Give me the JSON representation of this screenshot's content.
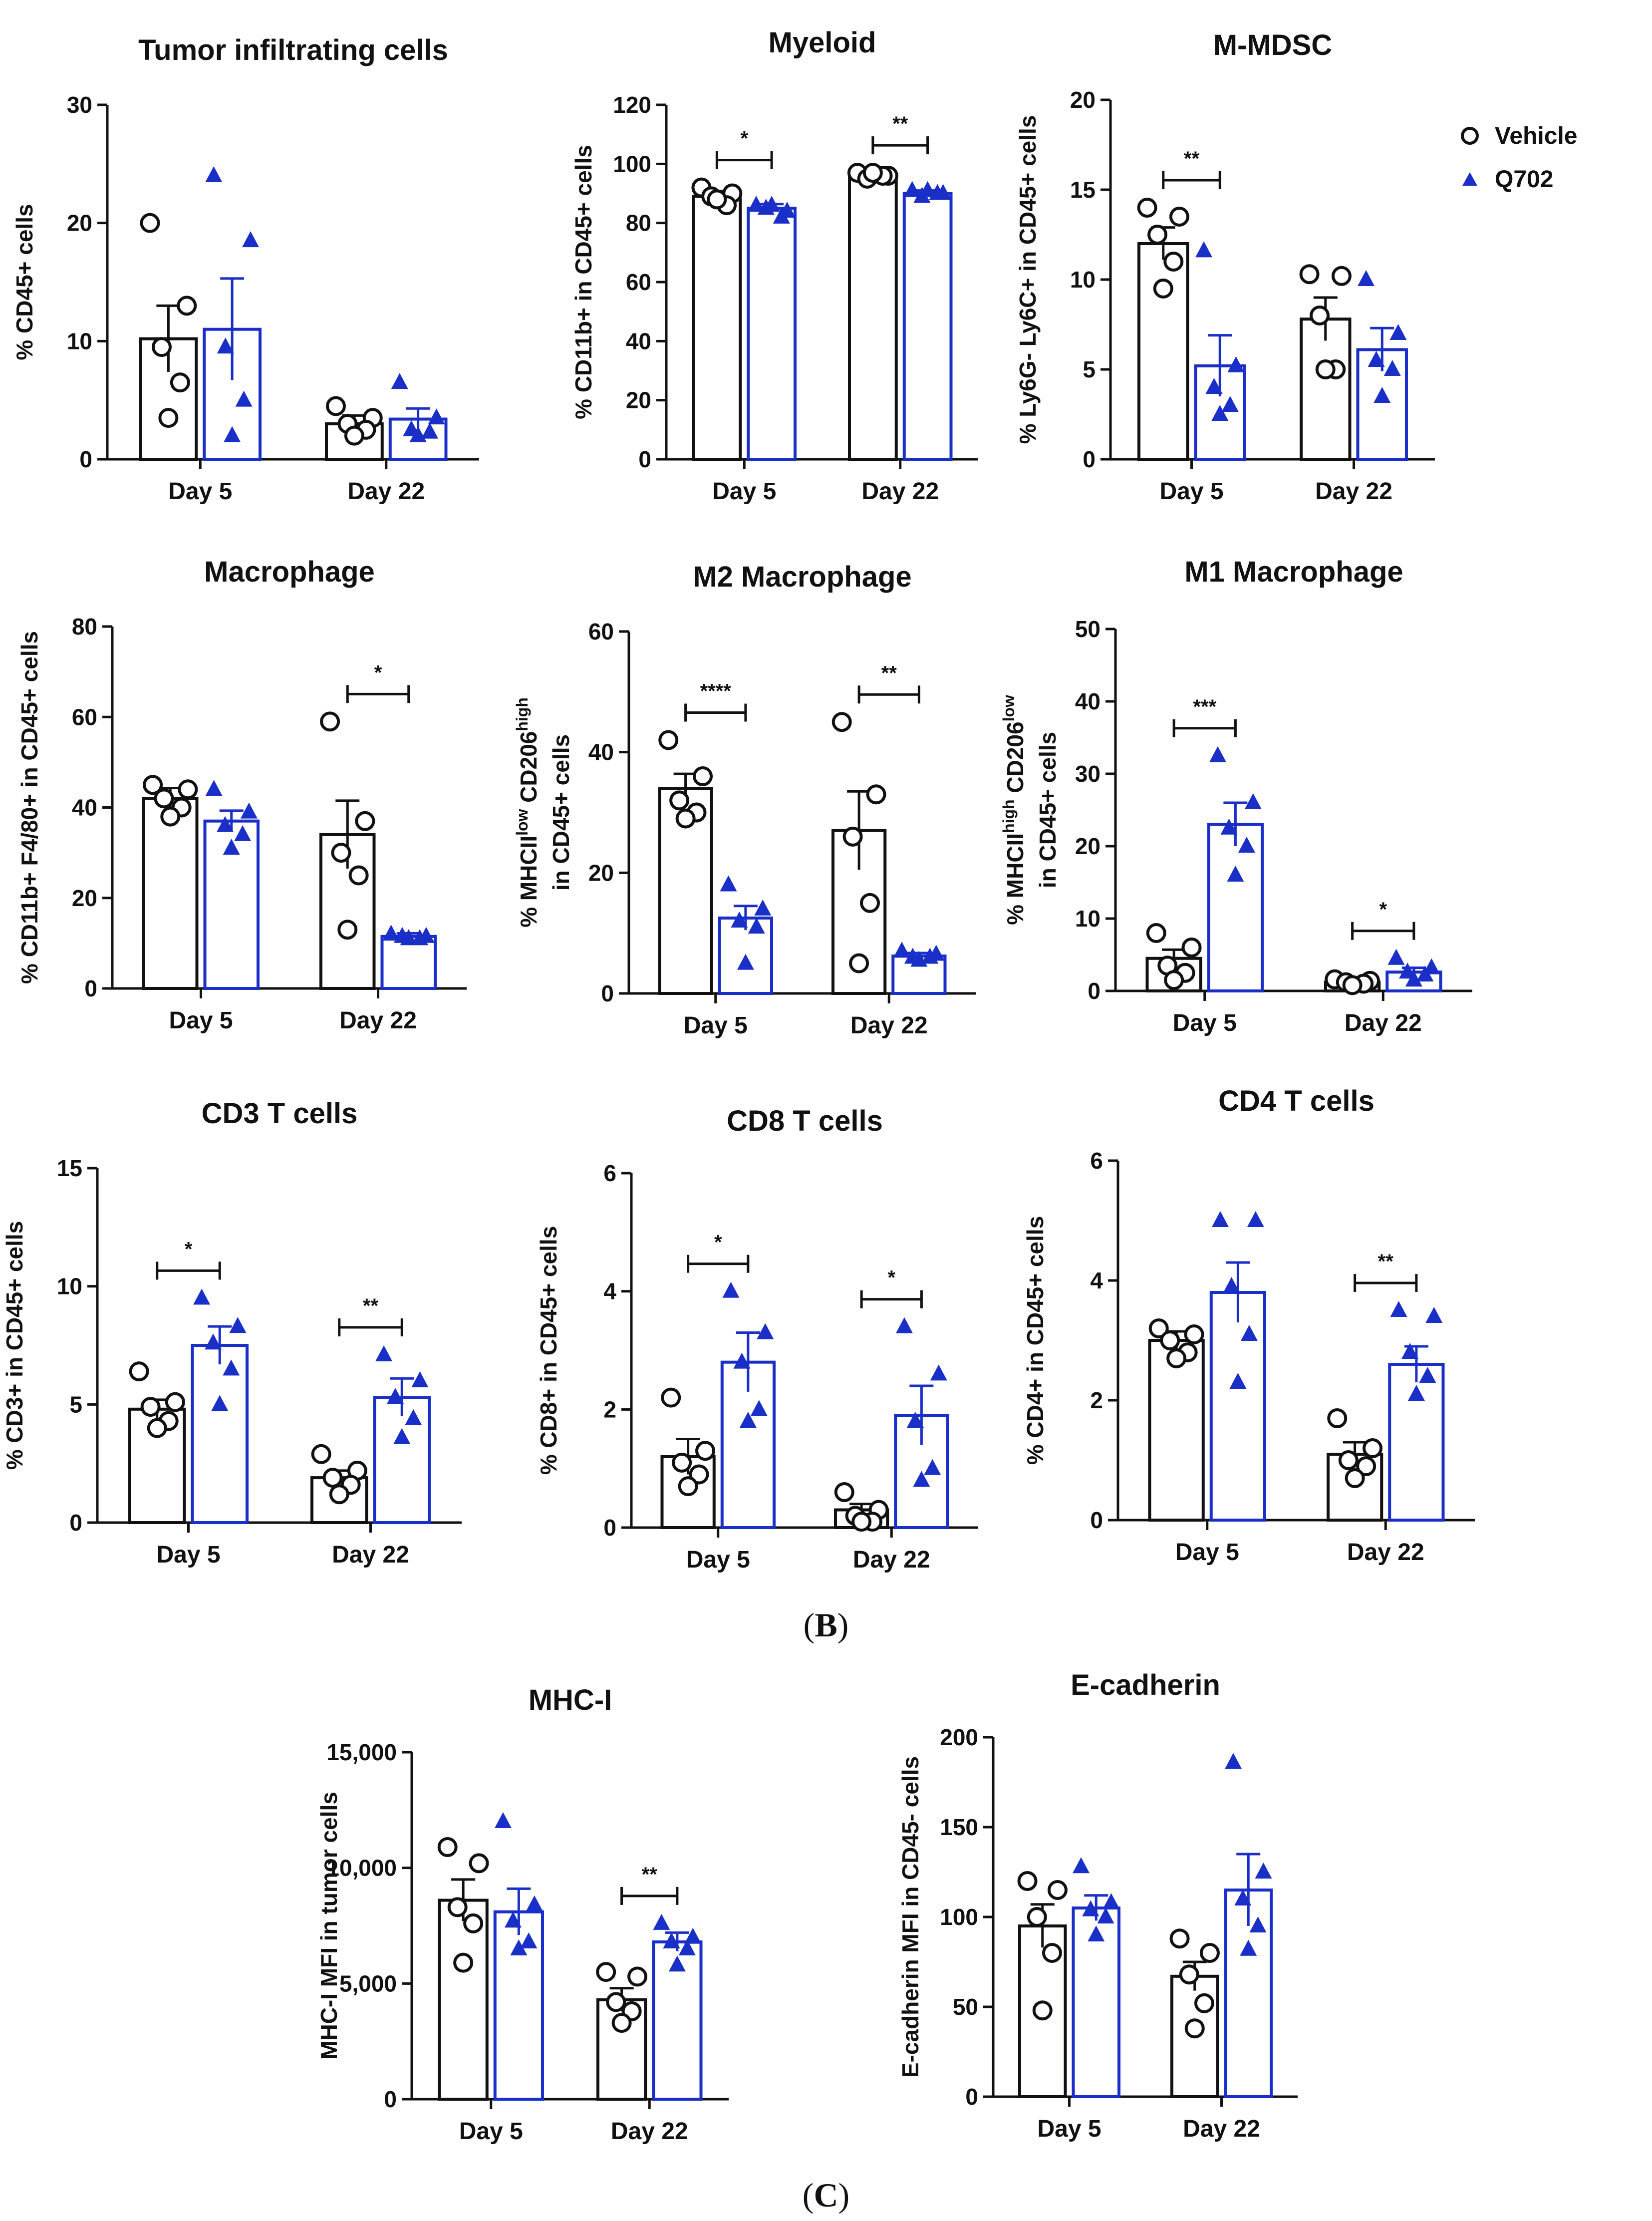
{
  "colors": {
    "vehicle": "#111111",
    "q702": "#1a2fc8"
  },
  "legend": {
    "vehicle": "Vehicle",
    "q702": "Q702"
  },
  "panel_labels": {
    "b_open": "(",
    "b_letter": "B",
    "b_close": ")",
    "c_open": "(",
    "c_letter": "C",
    "c_close": ")"
  },
  "chart_data": [
    {
      "type": "bar",
      "title": "Tumor infiltrating cells",
      "ylabel": "% CD45+ cells",
      "categories": [
        "Day 5",
        "Day 22"
      ],
      "ylim": [
        0,
        30
      ],
      "yticks": [
        0,
        10,
        20,
        30
      ],
      "series": [
        {
          "name": "Vehicle",
          "values": [
            10.2,
            3.0
          ],
          "sem": [
            2.8,
            0.7
          ],
          "points": [
            [
              20.0,
              13.0,
              9.5,
              6.5,
              3.5
            ],
            [
              4.5,
              3.5,
              3.0,
              2.5,
              2.0
            ]
          ]
        },
        {
          "name": "Q702",
          "values": [
            11.0,
            3.4
          ],
          "sem": [
            4.3,
            0.9
          ],
          "points": [
            [
              24.0,
              18.5,
              9.5,
              5.0,
              2.0
            ],
            [
              6.5,
              3.5,
              2.5,
              2.3,
              2.0
            ]
          ]
        }
      ],
      "significance": []
    },
    {
      "type": "bar",
      "title": "Myeloid",
      "ylabel": "% CD11b+ in CD45+ cells",
      "categories": [
        "Day 5",
        "Day 22"
      ],
      "ylim": [
        0,
        120
      ],
      "yticks": [
        0,
        20,
        40,
        60,
        80,
        100,
        120
      ],
      "series": [
        {
          "name": "Vehicle",
          "values": [
            89,
            96
          ],
          "sem": [
            1.8,
            1.0
          ],
          "points": [
            [
              92,
              90,
              89,
              86,
              88
            ],
            [
              97,
              96,
              95,
              96,
              97
            ]
          ]
        },
        {
          "name": "Q702",
          "values": [
            85,
            90
          ],
          "sem": [
            1.4,
            1.0
          ],
          "points": [
            [
              86,
              84,
              85,
              82,
              86
            ],
            [
              91,
              90,
              89,
              90,
              91
            ]
          ]
        }
      ],
      "significance": [
        {
          "label": "*",
          "group": 0
        },
        {
          "label": "**",
          "group": 1
        }
      ]
    },
    {
      "type": "bar",
      "title": "M-MDSC",
      "ylabel": "% Ly6G- Ly6C+ in CD45+ cells",
      "categories": [
        "Day 5",
        "Day 22"
      ],
      "ylim": [
        0,
        20
      ],
      "yticks": [
        0,
        5,
        10,
        15,
        20
      ],
      "series": [
        {
          "name": "Vehicle",
          "values": [
            12.0,
            7.8
          ],
          "sem": [
            0.9,
            1.2
          ],
          "points": [
            [
              14.0,
              13.5,
              12.5,
              11.0,
              9.5
            ],
            [
              10.3,
              10.2,
              8.0,
              5.0,
              5.0
            ]
          ]
        },
        {
          "name": "Q702",
          "values": [
            5.2,
            6.1
          ],
          "sem": [
            1.7,
            1.2
          ],
          "points": [
            [
              11.6,
              5.2,
              4.0,
              3.0,
              2.5
            ],
            [
              10.0,
              7.0,
              5.5,
              5.0,
              3.5
            ]
          ]
        }
      ],
      "significance": [
        {
          "label": "**",
          "group": 0
        }
      ]
    },
    {
      "type": "bar",
      "title": "Macrophage",
      "ylabel": "% CD11b+ F4/80+ in CD45+ cells",
      "categories": [
        "Day 5",
        "Day 22"
      ],
      "ylim": [
        0,
        80
      ],
      "yticks": [
        0,
        20,
        40,
        60,
        80
      ],
      "series": [
        {
          "name": "Vehicle",
          "values": [
            42,
            34
          ],
          "sem": [
            2.3,
            7.5
          ],
          "points": [
            [
              45,
              44,
              42,
              40,
              38
            ],
            [
              59,
              37,
              30,
              25,
              13
            ]
          ]
        },
        {
          "name": "Q702",
          "values": [
            37,
            11.5
          ],
          "sem": [
            2.3,
            0.7
          ],
          "points": [
            [
              44,
              39,
              36,
              34,
              31
            ],
            [
              12,
              11.5,
              11.5,
              11,
              11
            ]
          ]
        }
      ],
      "significance": [
        {
          "label": "*",
          "group": 1
        }
      ]
    },
    {
      "type": "bar",
      "title": "M2 Macrophage",
      "ylabel": "% MHCIIˡᵒʷ CD206ʰⁱᵍʰ in CD45+ cells",
      "ylabel_line1": "% MHCII",
      "ylabel_sup1": "low",
      "ylabel_mid": " CD206",
      "ylabel_sup2": "high",
      "ylabel_line2": "in CD45+ cells",
      "categories": [
        "Day 5",
        "Day 22"
      ],
      "ylim": [
        0,
        60
      ],
      "yticks": [
        0,
        20,
        40,
        60
      ],
      "series": [
        {
          "name": "Vehicle",
          "values": [
            34,
            27
          ],
          "sem": [
            2.4,
            6.5
          ],
          "points": [
            [
              42,
              36,
              32,
              30,
              29
            ],
            [
              45,
              33,
              26,
              15,
              5
            ]
          ]
        },
        {
          "name": "Q702",
          "values": [
            12.5,
            6.2
          ],
          "sem": [
            2.0,
            0.5
          ],
          "points": [
            [
              18,
              14,
              12,
              11,
              5
            ],
            [
              7,
              6.5,
              6,
              6,
              5.5
            ]
          ]
        }
      ],
      "significance": [
        {
          "label": "****",
          "group": 0
        },
        {
          "label": "**",
          "group": 1
        }
      ]
    },
    {
      "type": "bar",
      "title": "M1 Macrophage",
      "ylabel": "% MHCIIʰⁱᵍʰ CD206ˡᵒʷ in CD45+ cells",
      "ylabel_line1": "% MHCII",
      "ylabel_sup1": "high",
      "ylabel_mid": " CD206",
      "ylabel_sup2": "low",
      "ylabel_line2": "in CD45+ cells",
      "categories": [
        "Day 5",
        "Day 22"
      ],
      "ylim": [
        0,
        50
      ],
      "yticks": [
        0,
        10,
        20,
        30,
        40,
        50
      ],
      "series": [
        {
          "name": "Vehicle",
          "values": [
            4.5,
            1.2
          ],
          "sem": [
            1.2,
            0.3
          ],
          "points": [
            [
              8.0,
              6.0,
              3.5,
              2.5,
              1.5
            ],
            [
              1.6,
              1.4,
              1.2,
              1.0,
              0.8
            ]
          ]
        },
        {
          "name": "Q702",
          "values": [
            23,
            2.6
          ],
          "sem": [
            3.0,
            0.6
          ],
          "points": [
            [
              32.5,
              26.0,
              22.5,
              20.0,
              16.0
            ],
            [
              4.5,
              3.2,
              2.6,
              2.2,
              1.5
            ]
          ]
        }
      ],
      "significance": [
        {
          "label": "***",
          "group": 0
        },
        {
          "label": "*",
          "group": 1
        }
      ]
    },
    {
      "type": "bar",
      "title": "CD3 T cells",
      "ylabel": "% CD3+ in CD45+ cells",
      "categories": [
        "Day 5",
        "Day 22"
      ],
      "ylim": [
        0,
        15
      ],
      "yticks": [
        0,
        5,
        10,
        15
      ],
      "series": [
        {
          "name": "Vehicle",
          "values": [
            4.8,
            1.9
          ],
          "sem": [
            0.4,
            0.3
          ],
          "points": [
            [
              6.4,
              5.1,
              4.9,
              4.3,
              4.0
            ],
            [
              2.9,
              2.2,
              1.9,
              1.6,
              1.2
            ]
          ]
        },
        {
          "name": "Q702",
          "values": [
            7.5,
            5.3
          ],
          "sem": [
            0.8,
            0.8
          ],
          "points": [
            [
              9.5,
              8.3,
              7.6,
              6.5,
              5.0
            ],
            [
              7.1,
              6.0,
              5.3,
              4.4,
              3.6
            ]
          ]
        }
      ],
      "significance": [
        {
          "label": "*",
          "group": 0
        },
        {
          "label": "**",
          "group": 1
        }
      ]
    },
    {
      "type": "bar",
      "title": "CD8 T cells",
      "ylabel": "% CD8+ in CD45+ cells",
      "categories": [
        "Day 5",
        "Day 22"
      ],
      "ylim": [
        0,
        6
      ],
      "yticks": [
        0,
        2,
        4,
        6
      ],
      "series": [
        {
          "name": "Vehicle",
          "values": [
            1.2,
            0.3
          ],
          "sem": [
            0.3,
            0.1
          ],
          "points": [
            [
              2.2,
              1.3,
              1.1,
              0.9,
              0.7
            ],
            [
              0.6,
              0.3,
              0.2,
              0.1,
              0.1
            ]
          ]
        },
        {
          "name": "Q702",
          "values": [
            2.8,
            1.9
          ],
          "sem": [
            0.5,
            0.5
          ],
          "points": [
            [
              4.0,
              3.3,
              2.8,
              2.0,
              1.8
            ],
            [
              3.4,
              2.6,
              1.8,
              1.0,
              0.8
            ]
          ]
        }
      ],
      "significance": [
        {
          "label": "*",
          "group": 0
        },
        {
          "label": "*",
          "group": 1
        }
      ]
    },
    {
      "type": "bar",
      "title": "CD4 T cells",
      "ylabel": "% CD4+ in CD45+ cells",
      "categories": [
        "Day 5",
        "Day 22"
      ],
      "ylim": [
        0,
        6
      ],
      "yticks": [
        0,
        2,
        4,
        6
      ],
      "series": [
        {
          "name": "Vehicle",
          "values": [
            3.0,
            1.1
          ],
          "sem": [
            0.15,
            0.2
          ],
          "points": [
            [
              3.2,
              3.1,
              3.0,
              2.8,
              2.7
            ],
            [
              1.7,
              1.2,
              1.0,
              0.9,
              0.7
            ]
          ]
        },
        {
          "name": "Q702",
          "values": [
            3.8,
            2.6
          ],
          "sem": [
            0.5,
            0.3
          ],
          "points": [
            [
              5.0,
              5.0,
              3.9,
              3.1,
              2.3
            ],
            [
              3.5,
              3.4,
              2.8,
              2.4,
              2.1
            ]
          ]
        }
      ],
      "significance": [
        {
          "label": "**",
          "group": 1
        }
      ]
    },
    {
      "type": "bar",
      "title": "MHC-I",
      "ylabel": "MHC-I MFI in tumor cells",
      "categories": [
        "Day 5",
        "Day 22"
      ],
      "ylim": [
        0,
        15000
      ],
      "yticks": [
        0,
        5000,
        10000,
        15000
      ],
      "ytick_labels": [
        "0",
        "5,000",
        "10,000",
        "15,000"
      ],
      "series": [
        {
          "name": "Vehicle",
          "values": [
            8600,
            4300
          ],
          "sem": [
            900,
            500
          ],
          "points": [
            [
              10900,
              10200,
              8300,
              7600,
              5900
            ],
            [
              5500,
              5300,
              4200,
              3800,
              3300
            ]
          ]
        },
        {
          "name": "Q702",
          "values": [
            8100,
            6800
          ],
          "sem": [
            1000,
            400
          ],
          "points": [
            [
              12000,
              8400,
              7700,
              6800,
              6500
            ],
            [
              7600,
              7000,
              6800,
              6500,
              5800
            ]
          ]
        }
      ],
      "significance": [
        {
          "label": "**",
          "group": 1
        }
      ]
    },
    {
      "type": "bar",
      "title": "E-cadherin",
      "ylabel": "E-cadherin MFI in CD45- cells",
      "categories": [
        "Day 5",
        "Day 22"
      ],
      "ylim": [
        0,
        200
      ],
      "yticks": [
        0,
        50,
        100,
        150,
        200
      ],
      "series": [
        {
          "name": "Vehicle",
          "values": [
            95,
            67
          ],
          "sem": [
            12,
            8
          ],
          "points": [
            [
              120,
              115,
              100,
              80,
              48
            ],
            [
              88,
              80,
              68,
              52,
              38
            ]
          ]
        },
        {
          "name": "Q702",
          "values": [
            105,
            115
          ],
          "sem": [
            7,
            20
          ],
          "points": [
            [
              128,
              108,
              104,
              100,
              90
            ],
            [
              186,
              125,
              110,
              95,
              82
            ]
          ]
        }
      ],
      "significance": []
    }
  ]
}
